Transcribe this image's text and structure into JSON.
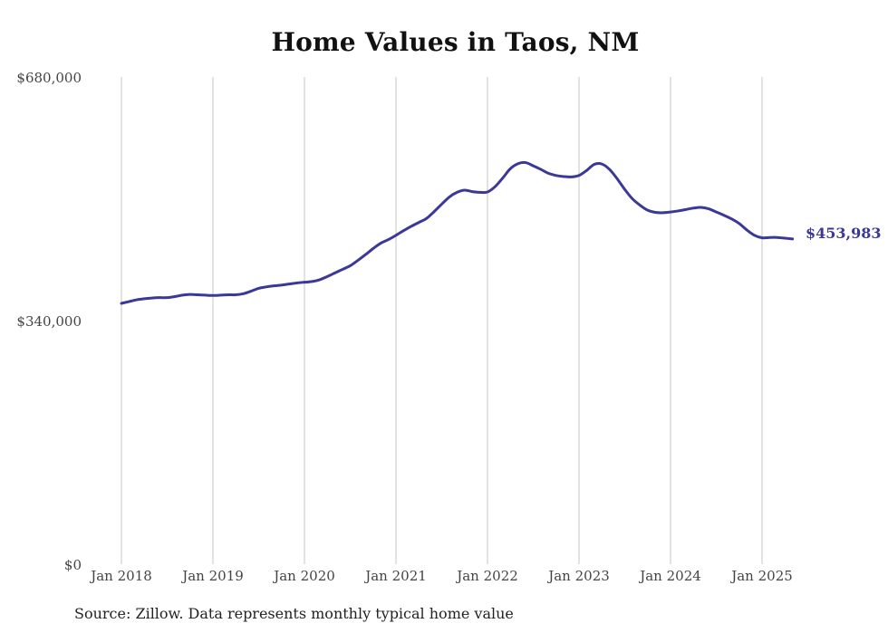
{
  "chart_data": {
    "type": "line",
    "title": "Home Values in Taos, NM",
    "source": "Source: Zillow. Data represents monthly typical home value",
    "xlabel": "",
    "ylabel": "",
    "x_tick_labels": [
      "Jan 2018",
      "Jan 2019",
      "Jan 2020",
      "Jan 2021",
      "Jan 2022",
      "Jan 2023",
      "Jan 2024",
      "Jan 2025"
    ],
    "y_tick_labels": [
      "$0",
      "$340,000",
      "$680,000"
    ],
    "y_tick_values": [
      0,
      340000,
      680000
    ],
    "ylim": [
      0,
      680000
    ],
    "x_range": [
      "2018-01",
      "2025-06"
    ],
    "grid": "vertical lines at January of each year",
    "line_color": "#3b3898",
    "end_label": "$453,983",
    "series": [
      {
        "points": [
          [
            "2018-01",
            364000
          ],
          [
            "2018-02",
            366500
          ],
          [
            "2018-03",
            369000
          ],
          [
            "2018-04",
            370500
          ],
          [
            "2018-05",
            371500
          ],
          [
            "2018-06",
            372000
          ],
          [
            "2018-07",
            372000
          ],
          [
            "2018-08",
            373500
          ],
          [
            "2018-09",
            375500
          ],
          [
            "2018-10",
            376500
          ],
          [
            "2018-11",
            376000
          ],
          [
            "2018-12",
            375500
          ],
          [
            "2019-01",
            375000
          ],
          [
            "2019-02",
            375500
          ],
          [
            "2019-03",
            376000
          ],
          [
            "2019-04",
            376000
          ],
          [
            "2019-05",
            377500
          ],
          [
            "2019-06",
            381000
          ],
          [
            "2019-07",
            385000
          ],
          [
            "2019-08",
            387000
          ],
          [
            "2019-09",
            388500
          ],
          [
            "2019-10",
            389500
          ],
          [
            "2019-11",
            391000
          ],
          [
            "2019-12",
            392500
          ],
          [
            "2020-01",
            393500
          ],
          [
            "2020-02",
            394500
          ],
          [
            "2020-03",
            397000
          ],
          [
            "2020-04",
            401500
          ],
          [
            "2020-05",
            406500
          ],
          [
            "2020-06",
            411500
          ],
          [
            "2020-07",
            416500
          ],
          [
            "2020-08",
            424000
          ],
          [
            "2020-09",
            432000
          ],
          [
            "2020-10",
            440500
          ],
          [
            "2020-11",
            448000
          ],
          [
            "2020-12",
            453000
          ],
          [
            "2021-01",
            459000
          ],
          [
            "2021-02",
            465500
          ],
          [
            "2021-03",
            471500
          ],
          [
            "2021-04",
            477000
          ],
          [
            "2021-05",
            482500
          ],
          [
            "2021-06",
            492000
          ],
          [
            "2021-07",
            502500
          ],
          [
            "2021-08",
            512500
          ],
          [
            "2021-09",
            519000
          ],
          [
            "2021-10",
            522000
          ],
          [
            "2021-11",
            520000
          ],
          [
            "2021-12",
            519000
          ],
          [
            "2022-01",
            519500
          ],
          [
            "2022-02",
            527000
          ],
          [
            "2022-03",
            539000
          ],
          [
            "2022-04",
            552000
          ],
          [
            "2022-05",
            559000
          ],
          [
            "2022-06",
            560500
          ],
          [
            "2022-07",
            556000
          ],
          [
            "2022-08",
            551000
          ],
          [
            "2022-09",
            545500
          ],
          [
            "2022-10",
            542500
          ],
          [
            "2022-11",
            541000
          ],
          [
            "2022-12",
            540500
          ],
          [
            "2023-01",
            542500
          ],
          [
            "2023-02",
            549500
          ],
          [
            "2023-03",
            558000
          ],
          [
            "2023-04",
            558500
          ],
          [
            "2023-05",
            551000
          ],
          [
            "2023-06",
            538000
          ],
          [
            "2023-07",
            523000
          ],
          [
            "2023-08",
            510000
          ],
          [
            "2023-09",
            501000
          ],
          [
            "2023-10",
            494000
          ],
          [
            "2023-11",
            491000
          ],
          [
            "2023-12",
            490500
          ],
          [
            "2024-01",
            491500
          ],
          [
            "2024-02",
            493000
          ],
          [
            "2024-03",
            495000
          ],
          [
            "2024-04",
            497000
          ],
          [
            "2024-05",
            498000
          ],
          [
            "2024-06",
            496000
          ],
          [
            "2024-07",
            491500
          ],
          [
            "2024-08",
            487000
          ],
          [
            "2024-09",
            482000
          ],
          [
            "2024-10",
            475500
          ],
          [
            "2024-11",
            466500
          ],
          [
            "2024-12",
            459000
          ],
          [
            "2025-01",
            455500
          ],
          [
            "2025-02",
            456000
          ],
          [
            "2025-03",
            456000
          ],
          [
            "2025-04",
            455000
          ],
          [
            "2025-05",
            453983
          ]
        ]
      }
    ]
  }
}
